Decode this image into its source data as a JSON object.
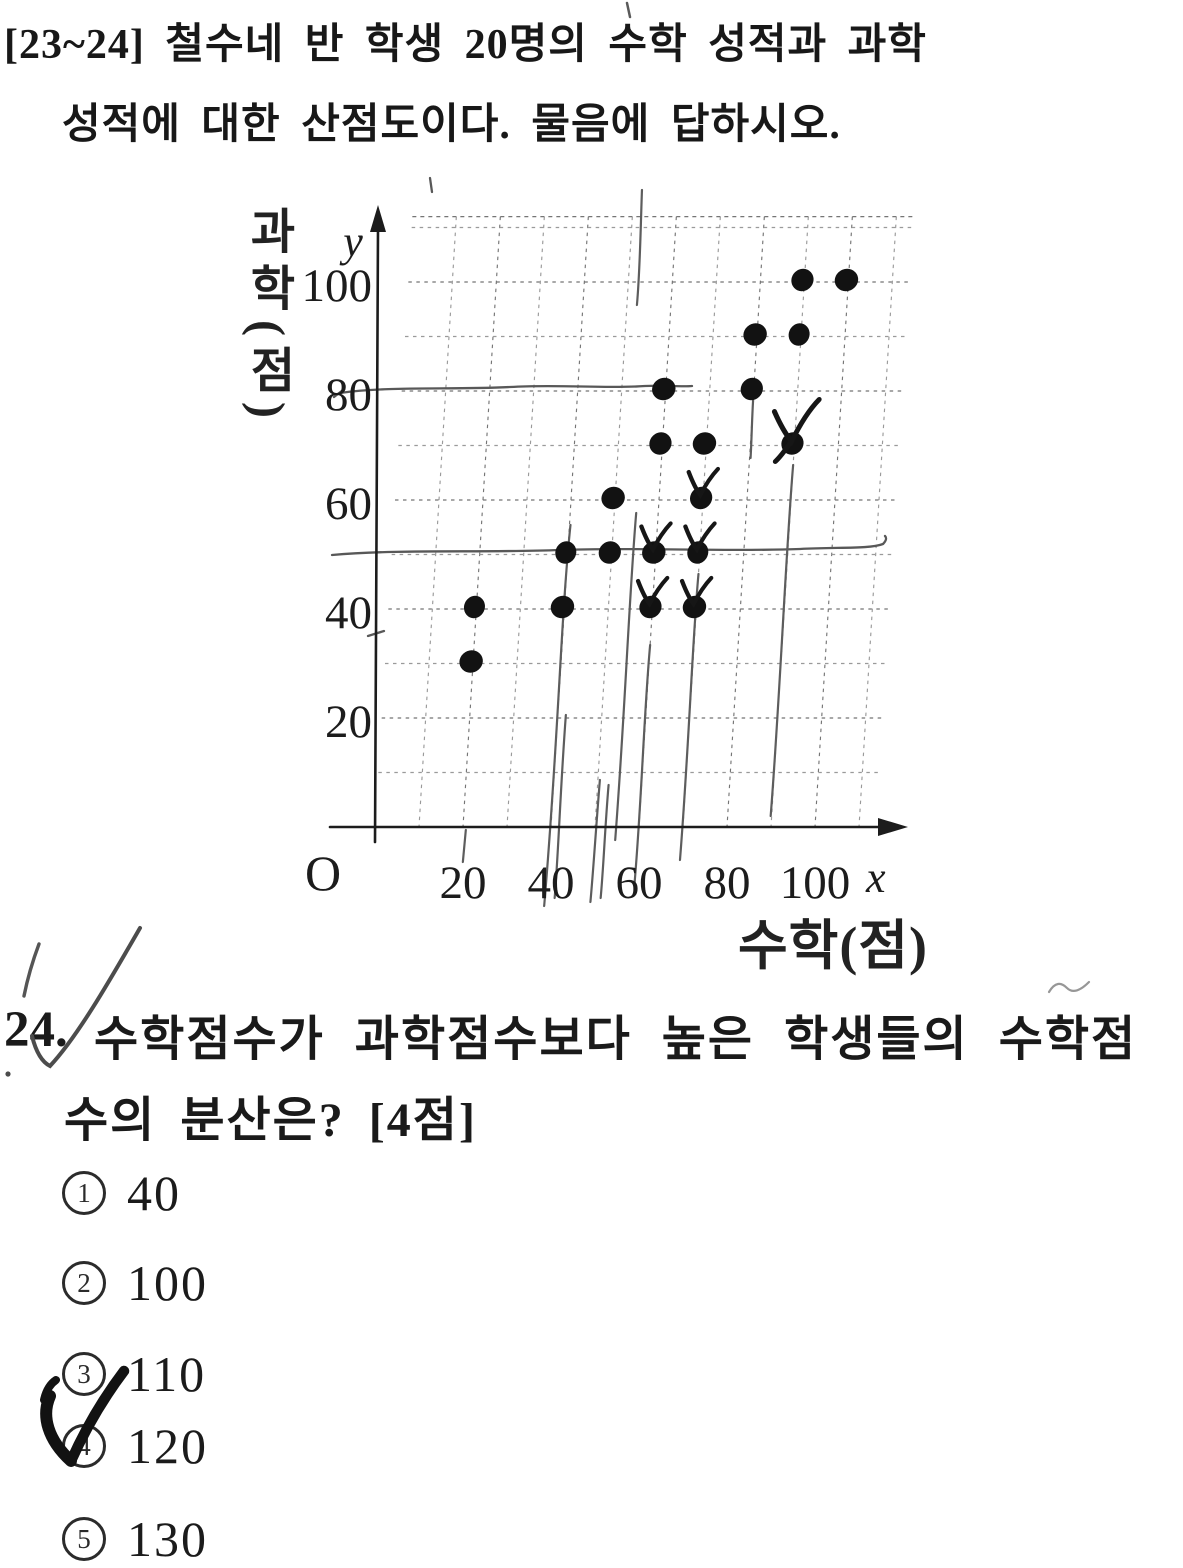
{
  "passage_header": {
    "line1": "[23~24] 철수네 반 학생 20명의 수학 성적과 과학",
    "line2": "성적에 대한 산점도이다. 물음에 답하시오."
  },
  "chart_data": {
    "type": "scatter",
    "title": "",
    "xlabel": "수학(점)",
    "ylabel": "과학(점)",
    "x_axis_letter": "x",
    "y_axis_letter": "y",
    "origin_label": "O",
    "x_ticks": [
      20,
      40,
      60,
      80,
      100
    ],
    "y_ticks": [
      20,
      40,
      60,
      80,
      100
    ],
    "xlim": [
      0,
      110
    ],
    "ylim": [
      0,
      110
    ],
    "grid": true,
    "grid_step": 10,
    "points": [
      {
        "x": 20,
        "y": 30,
        "checked": false
      },
      {
        "x": 20,
        "y": 40,
        "checked": false
      },
      {
        "x": 40,
        "y": 40,
        "checked": false
      },
      {
        "x": 60,
        "y": 40,
        "checked": true
      },
      {
        "x": 70,
        "y": 40,
        "checked": true
      },
      {
        "x": 40,
        "y": 50,
        "checked": false
      },
      {
        "x": 50,
        "y": 50,
        "checked": false
      },
      {
        "x": 60,
        "y": 50,
        "checked": true
      },
      {
        "x": 70,
        "y": 50,
        "checked": true
      },
      {
        "x": 50,
        "y": 60,
        "checked": false
      },
      {
        "x": 70,
        "y": 60,
        "checked": true
      },
      {
        "x": 60,
        "y": 70,
        "checked": false
      },
      {
        "x": 70,
        "y": 70,
        "checked": false
      },
      {
        "x": 90,
        "y": 70,
        "checked": true,
        "big_check": true
      },
      {
        "x": 60,
        "y": 80,
        "checked": false
      },
      {
        "x": 80,
        "y": 80,
        "checked": false
      },
      {
        "x": 80,
        "y": 90,
        "checked": false
      },
      {
        "x": 90,
        "y": 90,
        "checked": false
      },
      {
        "x": 90,
        "y": 100,
        "checked": false
      },
      {
        "x": 100,
        "y": 100,
        "checked": false
      }
    ],
    "hand_drawn_guide_lines_at_y": [
      80,
      50
    ]
  },
  "question": {
    "number": "24.",
    "line1": "수학점수가 과학점수보다 높은 학생들의 수학점",
    "line2": "수의 분산은? [4점]"
  },
  "options": [
    {
      "number": "1",
      "value": "40",
      "selected": false
    },
    {
      "number": "2",
      "value": "100",
      "selected": false
    },
    {
      "number": "3",
      "value": "110",
      "selected": false
    },
    {
      "number": "4",
      "value": "120",
      "selected": true
    },
    {
      "number": "5",
      "value": "130",
      "selected": false
    }
  ]
}
